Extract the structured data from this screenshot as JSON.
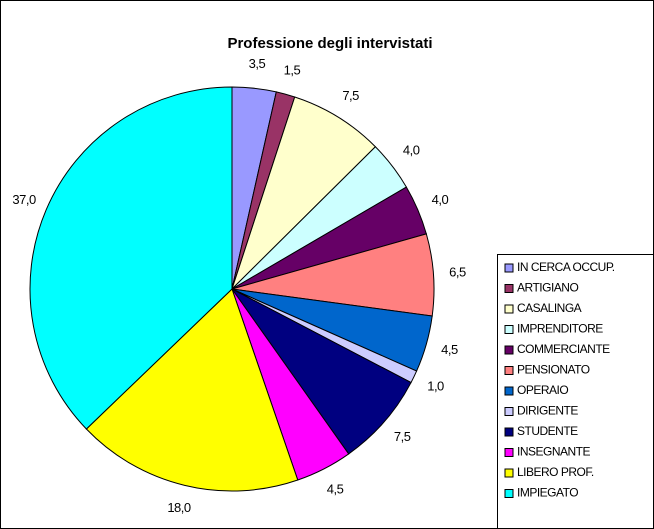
{
  "chart_data": {
    "type": "pie",
    "title": "Professione degli intervistati",
    "categories": [
      "IN CERCA OCCUP.",
      "ARTIGIANO",
      "CASALINGA",
      "IMPRENDITORE",
      "COMMERCIANTE",
      "PENSIONATO",
      "OPERAIO",
      "DIRIGENTE",
      "STUDENTE",
      "INSEGNANTE",
      "LIBERO PROF.",
      "IMPIEGATO"
    ],
    "values": [
      3.5,
      1.5,
      7.5,
      4.0,
      4.0,
      6.5,
      4.5,
      1.0,
      7.5,
      4.5,
      18.0,
      37.0
    ],
    "value_labels": [
      "3,5",
      "1,5",
      "7,5",
      "4,0",
      "4,0",
      "6,5",
      "4,5",
      "1,0",
      "7,5",
      "4,5",
      "18,0",
      "37,0"
    ],
    "colors": [
      "#9999ff",
      "#993366",
      "#ffffcc",
      "#ccffff",
      "#660066",
      "#ff8080",
      "#0066cc",
      "#ccccff",
      "#000080",
      "#ff00ff",
      "#ffff00",
      "#00ffff"
    ],
    "legend": "right"
  }
}
